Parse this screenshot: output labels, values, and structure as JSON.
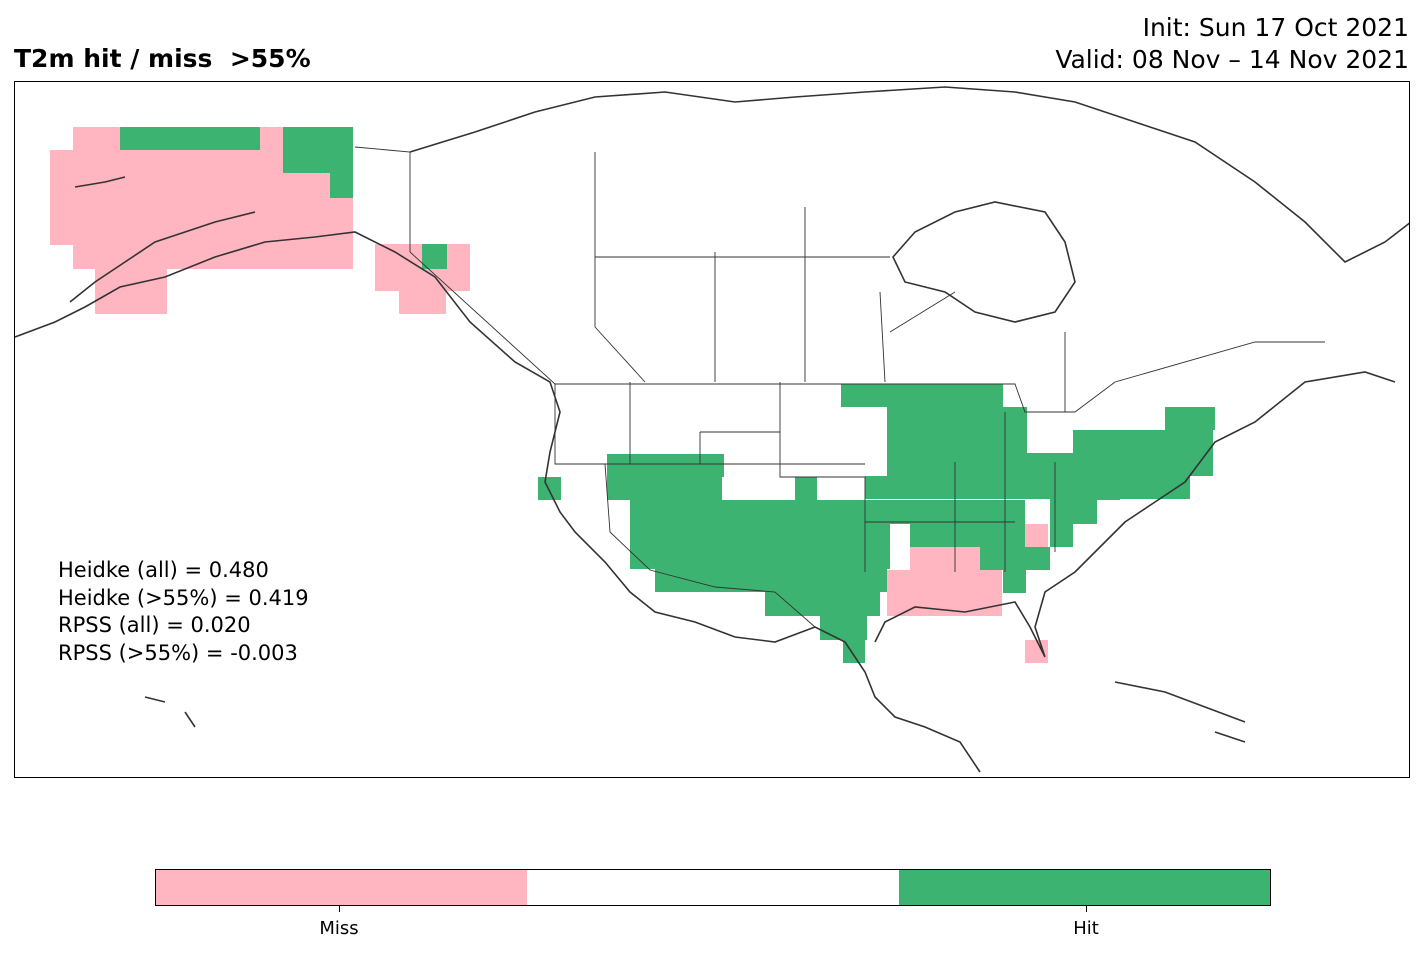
{
  "title": {
    "main": "T2m hit / miss  >55%",
    "init": "Init: Sun 17 Oct 2021",
    "valid": "Valid: 08 Nov – 14 Nov 2021"
  },
  "stats": [
    "Heidke (all) = 0.480",
    "Heidke (>55%) = 0.419",
    "RPSS (all) = 0.020",
    "RPSS (>55%) = -0.003"
  ],
  "colorbar": {
    "labels": [
      "Miss",
      "Hit"
    ],
    "colors": {
      "miss": "#ffb6c1",
      "none": "#ffffff",
      "hit": "#3cb371"
    }
  },
  "map": {
    "region": "North America",
    "categories": {
      "miss_regions": [
        "Alaska",
        "Southeast Alaska",
        "Gulf Coast (MS/AL/LA/FL panhandle)",
        "South Florida",
        "Virginia/NC border"
      ],
      "hit_regions": [
        "Northern Alaska coast",
        "Yukon",
        "Central & Eastern US",
        "Southwest US",
        "Texas",
        "Northeast US",
        "Great Lakes"
      ]
    }
  }
}
